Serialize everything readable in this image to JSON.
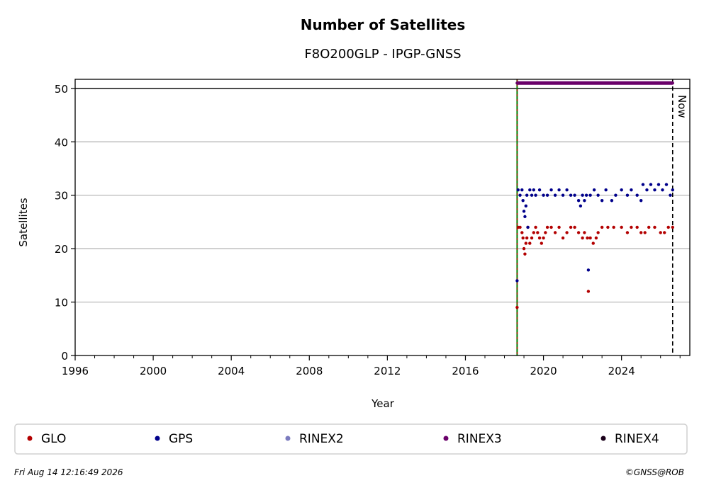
{
  "chart_data": {
    "type": "scatter",
    "title": "Number of Satellites",
    "subtitle": "F8O200GLP - IPGP-GNSS",
    "xlabel": "Year",
    "ylabel": "Satellites",
    "xlim": [
      1996,
      2027.5
    ],
    "ylim": [
      0,
      51.7
    ],
    "x_ticks": [
      1996,
      2000,
      2004,
      2008,
      2012,
      2016,
      2020,
      2024
    ],
    "y_ticks": [
      0,
      10,
      20,
      30,
      40,
      50
    ],
    "grid": "horizontal",
    "reference_line_y": 50,
    "start_marker_x": 2018.65,
    "now_marker": {
      "x": 2026.62,
      "label": "Now"
    },
    "legend_position": "bottom",
    "series": [
      {
        "name": "GLO",
        "color": "#b30000",
        "points": [
          [
            2018.65,
            9
          ],
          [
            2018.7,
            24
          ],
          [
            2018.8,
            24
          ],
          [
            2018.9,
            23
          ],
          [
            2018.95,
            22
          ],
          [
            2019.0,
            20
          ],
          [
            2019.05,
            19
          ],
          [
            2019.1,
            21
          ],
          [
            2019.15,
            22
          ],
          [
            2019.2,
            24
          ],
          [
            2019.3,
            21
          ],
          [
            2019.4,
            22
          ],
          [
            2019.5,
            23
          ],
          [
            2019.6,
            24
          ],
          [
            2019.7,
            23
          ],
          [
            2019.8,
            22
          ],
          [
            2019.9,
            21
          ],
          [
            2020.0,
            22
          ],
          [
            2020.1,
            23
          ],
          [
            2020.2,
            24
          ],
          [
            2020.4,
            24
          ],
          [
            2020.6,
            23
          ],
          [
            2020.8,
            24
          ],
          [
            2021.0,
            22
          ],
          [
            2021.2,
            23
          ],
          [
            2021.4,
            24
          ],
          [
            2021.6,
            24
          ],
          [
            2021.8,
            23
          ],
          [
            2022.0,
            22
          ],
          [
            2022.1,
            23
          ],
          [
            2022.25,
            22
          ],
          [
            2022.3,
            12
          ],
          [
            2022.4,
            22
          ],
          [
            2022.55,
            21
          ],
          [
            2022.7,
            22
          ],
          [
            2022.8,
            23
          ],
          [
            2023.0,
            24
          ],
          [
            2023.3,
            24
          ],
          [
            2023.6,
            24
          ],
          [
            2024.0,
            24
          ],
          [
            2024.3,
            23
          ],
          [
            2024.5,
            24
          ],
          [
            2024.8,
            24
          ],
          [
            2025.0,
            23
          ],
          [
            2025.2,
            23
          ],
          [
            2025.4,
            24
          ],
          [
            2025.7,
            24
          ],
          [
            2026.0,
            23
          ],
          [
            2026.2,
            23
          ],
          [
            2026.4,
            24
          ],
          [
            2026.62,
            24
          ]
        ]
      },
      {
        "name": "GPS",
        "color": "#00008b",
        "points": [
          [
            2018.65,
            14
          ],
          [
            2018.7,
            31
          ],
          [
            2018.8,
            30
          ],
          [
            2018.9,
            31
          ],
          [
            2018.95,
            29
          ],
          [
            2019.0,
            27
          ],
          [
            2019.05,
            26
          ],
          [
            2019.1,
            28
          ],
          [
            2019.15,
            30
          ],
          [
            2019.2,
            24
          ],
          [
            2019.3,
            31
          ],
          [
            2019.4,
            30
          ],
          [
            2019.5,
            31
          ],
          [
            2019.6,
            30
          ],
          [
            2019.8,
            31
          ],
          [
            2020.0,
            30
          ],
          [
            2020.2,
            30
          ],
          [
            2020.4,
            31
          ],
          [
            2020.6,
            30
          ],
          [
            2020.8,
            31
          ],
          [
            2021.0,
            30
          ],
          [
            2021.2,
            31
          ],
          [
            2021.4,
            30
          ],
          [
            2021.6,
            30
          ],
          [
            2021.8,
            29
          ],
          [
            2021.9,
            28
          ],
          [
            2022.0,
            30
          ],
          [
            2022.1,
            29
          ],
          [
            2022.2,
            30
          ],
          [
            2022.3,
            16
          ],
          [
            2022.4,
            30
          ],
          [
            2022.6,
            31
          ],
          [
            2022.8,
            30
          ],
          [
            2023.0,
            29
          ],
          [
            2023.2,
            31
          ],
          [
            2023.5,
            29
          ],
          [
            2023.7,
            30
          ],
          [
            2024.0,
            31
          ],
          [
            2024.3,
            30
          ],
          [
            2024.5,
            31
          ],
          [
            2024.8,
            30
          ],
          [
            2025.0,
            29
          ],
          [
            2025.1,
            32
          ],
          [
            2025.3,
            31
          ],
          [
            2025.5,
            32
          ],
          [
            2025.7,
            31
          ],
          [
            2025.9,
            32
          ],
          [
            2026.1,
            31
          ],
          [
            2026.3,
            32
          ],
          [
            2026.5,
            30
          ],
          [
            2026.62,
            31
          ]
        ]
      },
      {
        "name": "RINEX2",
        "color": "#7b7bbf",
        "points": []
      },
      {
        "name": "RINEX3",
        "color": "#6a006a",
        "points": [
          [
            2018.65,
            51
          ],
          [
            2019.5,
            51
          ],
          [
            2020.5,
            51
          ],
          [
            2021.5,
            51
          ],
          [
            2022.5,
            51
          ],
          [
            2023.5,
            51
          ],
          [
            2024.5,
            51
          ],
          [
            2025.5,
            51
          ],
          [
            2026.62,
            51
          ]
        ]
      },
      {
        "name": "RINEX4",
        "color": "#1a001a",
        "points": []
      }
    ]
  },
  "footer": {
    "timestamp": "Fri Aug 14 12:16:49 2026",
    "credit": "©GNSS@ROB"
  }
}
